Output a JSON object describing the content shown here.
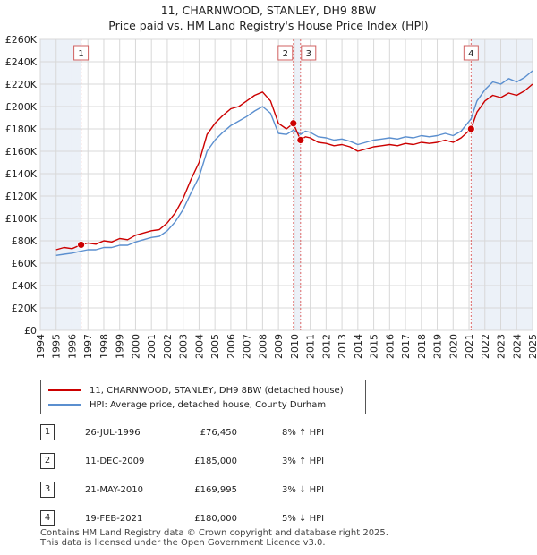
{
  "title": "11, CHARNWOOD, STANLEY, DH9 8BW",
  "subtitle": "Price paid vs. HM Land Registry's House Price Index (HPI)",
  "legend": {
    "property_label": "11, CHARNWOOD, STANLEY, DH9 8BW (detached house)",
    "hpi_label": "HPI: Average price, detached house, County Durham"
  },
  "colors": {
    "property": "#cc0000",
    "hpi": "#5b8fcf",
    "shade": "#dde6f3",
    "marker_line": "#dd6666"
  },
  "sales": [
    {
      "num": "1",
      "date": "26-JUL-1996",
      "price": "£76,450",
      "hpi": "8% ↑ HPI"
    },
    {
      "num": "2",
      "date": "11-DEC-2009",
      "price": "£185,000",
      "hpi": "3% ↑ HPI"
    },
    {
      "num": "3",
      "date": "21-MAY-2010",
      "price": "£169,995",
      "hpi": "3% ↓ HPI"
    },
    {
      "num": "4",
      "date": "19-FEB-2021",
      "price": "£180,000",
      "hpi": "5% ↓ HPI"
    }
  ],
  "footer": {
    "line1": "Contains HM Land Registry data © Crown copyright and database right 2025.",
    "line2": "This data is licensed under the Open Government Licence v3.0."
  },
  "chart_data": {
    "type": "line",
    "title": "11, CHARNWOOD, STANLEY, DH9 8BW",
    "subtitle": "Price paid vs. HM Land Registry's House Price Index (HPI)",
    "xlim": [
      1994,
      2025
    ],
    "ylim": [
      0,
      260000
    ],
    "x_ticks": [
      1994,
      1995,
      1996,
      1997,
      1998,
      1999,
      2000,
      2001,
      2002,
      2003,
      2004,
      2005,
      2006,
      2007,
      2008,
      2009,
      2010,
      2011,
      2012,
      2013,
      2014,
      2015,
      2016,
      2017,
      2018,
      2019,
      2020,
      2021,
      2022,
      2023,
      2024,
      2025
    ],
    "y_ticks": [
      0,
      20000,
      40000,
      60000,
      80000,
      100000,
      120000,
      140000,
      160000,
      180000,
      200000,
      220000,
      240000,
      260000
    ],
    "y_tick_labels": [
      "£0",
      "£20K",
      "£40K",
      "£60K",
      "£80K",
      "£100K",
      "£120K",
      "£140K",
      "£160K",
      "£180K",
      "£200K",
      "£220K",
      "£240K",
      "£260K"
    ],
    "grid": true,
    "series": [
      {
        "name": "11, CHARNWOOD, STANLEY, DH9 8BW (detached house)",
        "x": [
          1995.0,
          1995.5,
          1996.0,
          1996.57,
          1997.0,
          1997.5,
          1998.0,
          1998.5,
          1999.0,
          1999.5,
          2000.0,
          2000.5,
          2001.0,
          2001.5,
          2002.0,
          2002.5,
          2003.0,
          2003.5,
          2004.0,
          2004.5,
          2005.0,
          2005.5,
          2006.0,
          2006.5,
          2007.0,
          2007.5,
          2008.0,
          2008.5,
          2009.0,
          2009.5,
          2009.94,
          2010.39,
          2010.7,
          2011.0,
          2011.5,
          2012.0,
          2012.5,
          2013.0,
          2013.5,
          2014.0,
          2014.5,
          2015.0,
          2015.5,
          2016.0,
          2016.5,
          2017.0,
          2017.5,
          2018.0,
          2018.5,
          2019.0,
          2019.5,
          2020.0,
          2020.5,
          2021.13,
          2021.5,
          2022.0,
          2022.5,
          2023.0,
          2023.5,
          2024.0,
          2024.5,
          2025.0
        ],
        "y": [
          72000,
          74000,
          73000,
          76450,
          78000,
          77000,
          80000,
          79000,
          82000,
          81000,
          85000,
          87000,
          89000,
          90000,
          96000,
          105000,
          118000,
          135000,
          150000,
          175000,
          185000,
          192000,
          198000,
          200000,
          205000,
          210000,
          213000,
          205000,
          185000,
          180000,
          185000,
          169995,
          173000,
          172000,
          168000,
          167000,
          165000,
          166000,
          164000,
          160000,
          162000,
          164000,
          165000,
          166000,
          165000,
          167000,
          166000,
          168000,
          167000,
          168000,
          170000,
          168000,
          172000,
          180000,
          195000,
          205000,
          210000,
          208000,
          212000,
          210000,
          214000,
          220000
        ]
      },
      {
        "name": "HPI: Average price, detached house, County Durham",
        "x": [
          1995.0,
          1995.5,
          1996.0,
          1996.57,
          1997.0,
          1997.5,
          1998.0,
          1998.5,
          1999.0,
          1999.5,
          2000.0,
          2000.5,
          2001.0,
          2001.5,
          2002.0,
          2002.5,
          2003.0,
          2003.5,
          2004.0,
          2004.5,
          2005.0,
          2005.5,
          2006.0,
          2006.5,
          2007.0,
          2007.5,
          2008.0,
          2008.5,
          2009.0,
          2009.5,
          2009.94,
          2010.39,
          2010.7,
          2011.0,
          2011.5,
          2012.0,
          2012.5,
          2013.0,
          2013.5,
          2014.0,
          2014.5,
          2015.0,
          2015.5,
          2016.0,
          2016.5,
          2017.0,
          2017.5,
          2018.0,
          2018.5,
          2019.0,
          2019.5,
          2020.0,
          2020.5,
          2021.13,
          2021.5,
          2022.0,
          2022.5,
          2023.0,
          2023.5,
          2024.0,
          2024.5,
          2025.0
        ],
        "y": [
          67000,
          68000,
          69000,
          70800,
          72000,
          72000,
          74000,
          74000,
          76000,
          76000,
          79000,
          81000,
          83000,
          84000,
          89000,
          97000,
          108000,
          123000,
          137000,
          160000,
          170000,
          177000,
          183000,
          187000,
          191000,
          196000,
          200000,
          194000,
          176000,
          175000,
          179000,
          175000,
          178000,
          177000,
          173000,
          172000,
          170000,
          171000,
          169000,
          166000,
          168000,
          170000,
          171000,
          172000,
          171000,
          173000,
          172000,
          174000,
          173000,
          174000,
          176000,
          174000,
          178000,
          189000,
          205000,
          215000,
          222000,
          220000,
          225000,
          222000,
          226000,
          232000
        ]
      }
    ],
    "sale_markers": [
      {
        "label": "1",
        "x": 1996.57,
        "y": 76450
      },
      {
        "label": "2",
        "x": 2009.94,
        "y": 185000
      },
      {
        "label": "3",
        "x": 2010.39,
        "y": 169995
      },
      {
        "label": "4",
        "x": 2021.13,
        "y": 180000
      }
    ]
  }
}
